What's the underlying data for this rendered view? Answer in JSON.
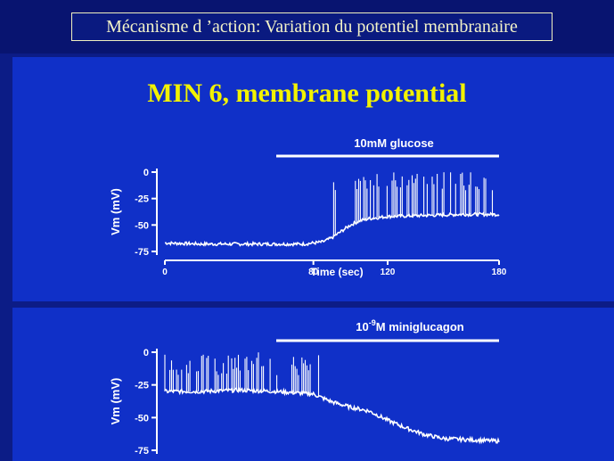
{
  "slide_title": "Mécanisme d ’action: Variation du potentiel membranaire",
  "main_title": "MIN 6, membrane potential",
  "colors": {
    "background": "#0c1c86",
    "panel": "#1030c8",
    "title": "#f2f200",
    "trace": "#ffffff"
  },
  "chart_data": [
    {
      "type": "line",
      "title": "MIN 6, membrane potential",
      "xlabel": "Time (sec)",
      "ylabel": "Vm (mV)",
      "xlim": [
        0,
        180
      ],
      "ylim": [
        -75,
        0
      ],
      "x_ticks": [
        0,
        80,
        120,
        180
      ],
      "y_ticks": [
        0,
        -25,
        -50,
        -75
      ],
      "stimulus": {
        "label": "10mM glucose",
        "start": 80,
        "end": 180
      },
      "series": [
        {
          "baseline_points": [
            [
              0,
              -67
            ],
            [
              20,
              -68
            ],
            [
              40,
              -68
            ],
            [
              60,
              -68
            ],
            [
              75,
              -68
            ],
            [
              85,
              -66
            ],
            [
              90,
              -62
            ],
            [
              95,
              -56
            ],
            [
              100,
              -50
            ],
            [
              105,
              -46
            ],
            [
              110,
              -44
            ],
            [
              120,
              -42
            ],
            [
              140,
              -41
            ],
            [
              160,
              -40
            ],
            [
              180,
              -40
            ]
          ],
          "spikes_start": 90,
          "spikes_end": 180,
          "spike_peak": 0
        }
      ]
    },
    {
      "type": "line",
      "xlabel": "",
      "ylabel": "Vm (mV)",
      "xlim": [
        0,
        180
      ],
      "ylim": [
        -75,
        0
      ],
      "y_ticks": [
        0,
        -25,
        -50,
        -75
      ],
      "stimulus": {
        "label": "10",
        "superscript": "-9",
        "label_suffix": "M miniglucagon",
        "start": 60,
        "end": 180
      },
      "series": [
        {
          "baseline_points": [
            [
              0,
              -30
            ],
            [
              20,
              -30
            ],
            [
              40,
              -29
            ],
            [
              60,
              -30
            ],
            [
              80,
              -32
            ],
            [
              90,
              -38
            ],
            [
              100,
              -42
            ],
            [
              110,
              -45
            ],
            [
              120,
              -52
            ],
            [
              130,
              -58
            ],
            [
              140,
              -63
            ],
            [
              150,
              -66
            ],
            [
              165,
              -67
            ],
            [
              180,
              -68
            ]
          ],
          "spikes_start": 0,
          "spikes_end": 85,
          "spike_peak": 0
        }
      ]
    }
  ]
}
